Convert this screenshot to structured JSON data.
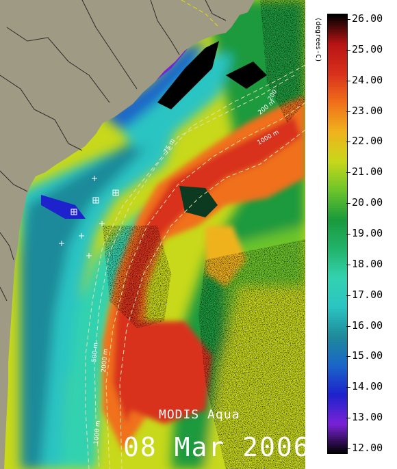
{
  "map": {
    "sensor": "MODIS Aqua",
    "date": "08 Mar 2006",
    "contours": [
      "75 m",
      "200 m",
      "200",
      "1000 m",
      "500 m",
      "2000 m",
      "1000 m"
    ]
  },
  "colorbar": {
    "unit": "(degrees-C)",
    "min": 12,
    "max": 26,
    "labels": [
      "26.00",
      "25.00",
      "24.00",
      "23.00",
      "22.00",
      "21.00",
      "20.00",
      "19.00",
      "18.00",
      "17.00",
      "16.00",
      "15.00",
      "14.00",
      "13.00",
      "12.00"
    ]
  },
  "colors": {
    "land": "#9e9a83",
    "c12": "#000000",
    "c13": "#7a22d6",
    "c14": "#1d22cc",
    "c15": "#1a66c8",
    "c16": "#1e8a9a",
    "c17": "#2ac4c2",
    "c18": "#33d2b0",
    "c19": "#22b36a",
    "c20": "#1a9a3c",
    "c21": "#6cc42a",
    "c22": "#c8d81a",
    "c23": "#f0b21c",
    "c24": "#f0701a",
    "c25": "#d8301c",
    "c26": "#b81414"
  }
}
